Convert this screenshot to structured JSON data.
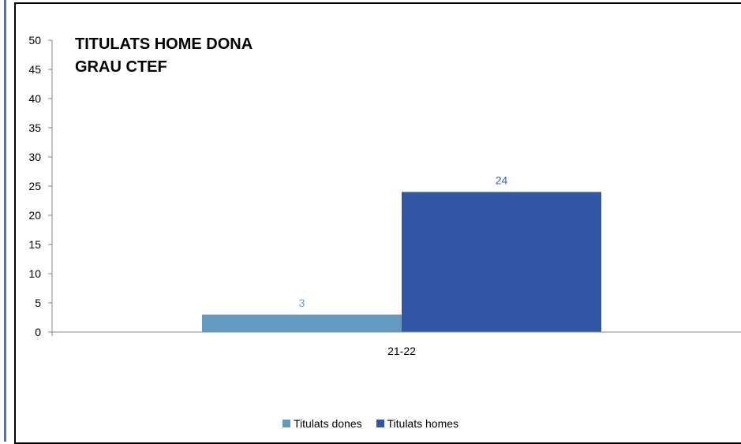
{
  "chart_data": {
    "type": "bar",
    "title_lines": [
      "TITULATS HOME DONA",
      "GRAU CTEF"
    ],
    "categories": [
      "21-22"
    ],
    "series": [
      {
        "name": "Titulats dones",
        "values": [
          3
        ],
        "color": "#639ac0"
      },
      {
        "name": "Titulats homes",
        "values": [
          24
        ],
        "color": "#3157a4"
      }
    ],
    "ylim": [
      0,
      50
    ],
    "yticks": [
      0,
      5,
      10,
      15,
      20,
      25,
      30,
      35,
      40,
      45,
      50
    ],
    "grid": false,
    "legend_position": "bottom",
    "data_label_colors": [
      "#6a9ec4",
      "#3d62b0"
    ]
  }
}
